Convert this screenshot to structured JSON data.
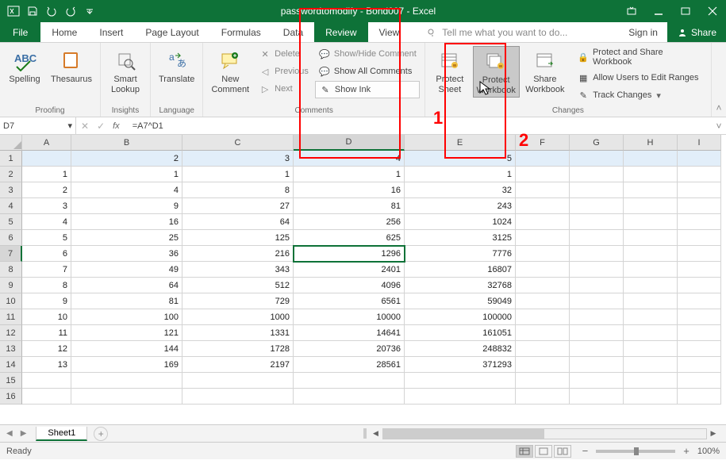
{
  "title": "passwordtomodify - Bond007 - Excel",
  "menubar": {
    "file": "File",
    "tabs": [
      "Home",
      "Insert",
      "Page Layout",
      "Formulas",
      "Data",
      "Review",
      "View"
    ],
    "activeIndex": 5,
    "tellme": "Tell me what you want to do...",
    "signin": "Sign in",
    "share": "Share"
  },
  "ribbon": {
    "proofing": {
      "label": "Proofing",
      "spelling": "Spelling",
      "thesaurus": "Thesaurus"
    },
    "insights": {
      "label": "Insights",
      "smartlookup": "Smart\nLookup"
    },
    "language": {
      "label": "Language",
      "translate": "Translate"
    },
    "comments": {
      "label": "Comments",
      "newcomment": "New\nComment",
      "delete": "Delete",
      "previous": "Previous",
      "next": "Next",
      "showhide": "Show/Hide Comment",
      "showall": "Show All Comments",
      "showink": "Show Ink"
    },
    "changes": {
      "label": "Changes",
      "protectsheet": "Protect\nSheet",
      "protectwb": "Protect\nWorkbook",
      "sharewb": "Share\nWorkbook",
      "protectshare": "Protect and Share Workbook",
      "allowusers": "Allow Users to Edit Ranges",
      "track": "Track Changes"
    }
  },
  "fbar": {
    "name": "D7",
    "formula": "=A7^D1"
  },
  "columns": [
    "A",
    "B",
    "C",
    "D",
    "E",
    "F",
    "G",
    "H",
    "I"
  ],
  "rows": [
    {
      "n": 1,
      "cells": [
        "",
        "2",
        "3",
        "4",
        "5",
        "",
        "",
        "",
        ""
      ]
    },
    {
      "n": 2,
      "cells": [
        "1",
        "1",
        "1",
        "1",
        "1",
        "",
        "",
        "",
        ""
      ]
    },
    {
      "n": 3,
      "cells": [
        "2",
        "4",
        "8",
        "16",
        "32",
        "",
        "",
        "",
        ""
      ]
    },
    {
      "n": 4,
      "cells": [
        "3",
        "9",
        "27",
        "81",
        "243",
        "",
        "",
        "",
        ""
      ]
    },
    {
      "n": 5,
      "cells": [
        "4",
        "16",
        "64",
        "256",
        "1024",
        "",
        "",
        "",
        ""
      ]
    },
    {
      "n": 6,
      "cells": [
        "5",
        "25",
        "125",
        "625",
        "3125",
        "",
        "",
        "",
        ""
      ]
    },
    {
      "n": 7,
      "cells": [
        "6",
        "36",
        "216",
        "1296",
        "7776",
        "",
        "",
        "",
        ""
      ]
    },
    {
      "n": 8,
      "cells": [
        "7",
        "49",
        "343",
        "2401",
        "16807",
        "",
        "",
        "",
        ""
      ]
    },
    {
      "n": 9,
      "cells": [
        "8",
        "64",
        "512",
        "4096",
        "32768",
        "",
        "",
        "",
        ""
      ]
    },
    {
      "n": 10,
      "cells": [
        "9",
        "81",
        "729",
        "6561",
        "59049",
        "",
        "",
        "",
        ""
      ]
    },
    {
      "n": 11,
      "cells": [
        "10",
        "100",
        "1000",
        "10000",
        "100000",
        "",
        "",
        "",
        ""
      ]
    },
    {
      "n": 12,
      "cells": [
        "11",
        "121",
        "1331",
        "14641",
        "161051",
        "",
        "",
        "",
        ""
      ]
    },
    {
      "n": 13,
      "cells": [
        "12",
        "144",
        "1728",
        "20736",
        "248832",
        "",
        "",
        "",
        ""
      ]
    },
    {
      "n": 14,
      "cells": [
        "13",
        "169",
        "2197",
        "28561",
        "371293",
        "",
        "",
        "",
        ""
      ]
    },
    {
      "n": 15,
      "cells": [
        "",
        "",
        "",
        "",
        "",
        "",
        "",
        "",
        ""
      ]
    },
    {
      "n": 16,
      "cells": [
        "",
        "",
        "",
        "",
        "",
        "",
        "",
        "",
        ""
      ]
    }
  ],
  "activeCell": {
    "row": 7,
    "col": "D"
  },
  "sheettab": "Sheet1",
  "status": {
    "ready": "Ready",
    "zoom": "100%"
  },
  "annotations": {
    "label1": "1",
    "label2": "2"
  }
}
